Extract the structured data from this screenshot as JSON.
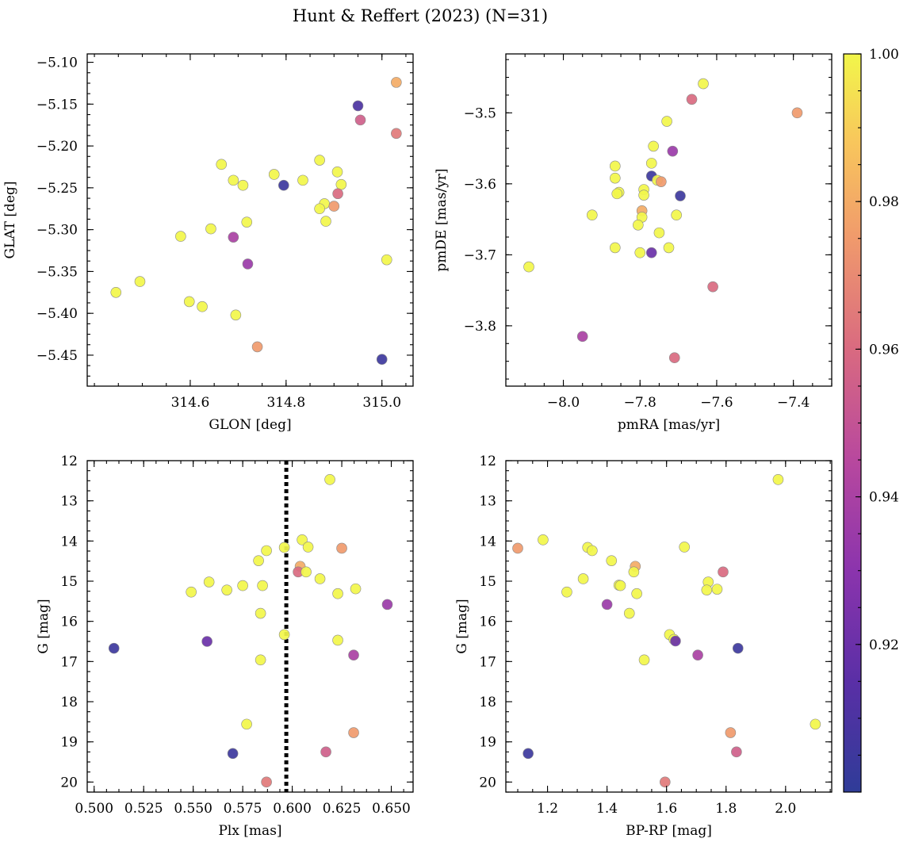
{
  "figure": {
    "title": "Hunt & Reffert (2023) (N=31)"
  },
  "colorbar": {
    "colormap": "plasma",
    "range": [
      0.9,
      1.0
    ],
    "ticks": [
      0.92,
      0.94,
      0.96,
      0.98,
      1.0
    ],
    "tick_labels": [
      "0.92",
      "0.94",
      "0.96",
      "0.98",
      "1.00"
    ]
  },
  "chart_data": [
    {
      "type": "scatter",
      "id": "sky",
      "xlabel": "GLON [deg]",
      "ylabel": "GLAT [deg]",
      "xlim": [
        314.385,
        315.065
      ],
      "ylim": [
        -5.487,
        -5.09
      ],
      "xticks": [
        314.6,
        314.8,
        315.0
      ],
      "xtick_labels": [
        "314.6",
        "314.8",
        "315.0"
      ],
      "yticks": [
        -5.1,
        -5.15,
        -5.2,
        -5.25,
        -5.3,
        -5.35,
        -5.4,
        -5.45
      ],
      "ytick_labels": [
        "−5.10",
        "−5.15",
        "−5.20",
        "−5.25",
        "−5.30",
        "−5.35",
        "−5.40",
        "−5.45"
      ],
      "points": [
        {
          "x": 315.03,
          "y": -5.124,
          "c": 0.98
        },
        {
          "x": 314.95,
          "y": -5.152,
          "c": 0.91
        },
        {
          "x": 314.955,
          "y": -5.169,
          "c": 0.955
        },
        {
          "x": 315.03,
          "y": -5.185,
          "c": 0.965
        },
        {
          "x": 314.87,
          "y": -5.217,
          "c": 1.0
        },
        {
          "x": 314.665,
          "y": -5.222,
          "c": 1.0
        },
        {
          "x": 314.907,
          "y": -5.231,
          "c": 1.0
        },
        {
          "x": 314.775,
          "y": -5.234,
          "c": 1.0
        },
        {
          "x": 314.69,
          "y": -5.241,
          "c": 1.0
        },
        {
          "x": 314.835,
          "y": -5.241,
          "c": 1.0
        },
        {
          "x": 314.915,
          "y": -5.246,
          "c": 1.0
        },
        {
          "x": 314.71,
          "y": -5.247,
          "c": 1.0
        },
        {
          "x": 314.795,
          "y": -5.247,
          "c": 0.905
        },
        {
          "x": 314.908,
          "y": -5.257,
          "c": 0.96
        },
        {
          "x": 314.88,
          "y": -5.269,
          "c": 1.0
        },
        {
          "x": 314.9,
          "y": -5.272,
          "c": 0.975
        },
        {
          "x": 314.87,
          "y": -5.275,
          "c": 1.0
        },
        {
          "x": 314.883,
          "y": -5.29,
          "c": 1.0
        },
        {
          "x": 314.718,
          "y": -5.291,
          "c": 1.0
        },
        {
          "x": 314.643,
          "y": -5.299,
          "c": 1.0
        },
        {
          "x": 314.58,
          "y": -5.308,
          "c": 1.0
        },
        {
          "x": 314.69,
          "y": -5.309,
          "c": 0.94
        },
        {
          "x": 315.01,
          "y": -5.336,
          "c": 1.0
        },
        {
          "x": 314.72,
          "y": -5.341,
          "c": 0.935
        },
        {
          "x": 314.495,
          "y": -5.362,
          "c": 1.0
        },
        {
          "x": 314.445,
          "y": -5.375,
          "c": 1.0
        },
        {
          "x": 314.598,
          "y": -5.386,
          "c": 1.0
        },
        {
          "x": 314.625,
          "y": -5.392,
          "c": 1.0
        },
        {
          "x": 314.695,
          "y": -5.402,
          "c": 1.0
        },
        {
          "x": 314.74,
          "y": -5.44,
          "c": 0.975
        },
        {
          "x": 315.0,
          "y": -5.455,
          "c": 0.905
        }
      ]
    },
    {
      "type": "scatter",
      "id": "proper-motion",
      "xlabel": "pmRA [mas/yr]",
      "ylabel": "pmDE [mas/yr]",
      "xlim": [
        -8.15,
        -7.3
      ],
      "ylim": [
        -3.885,
        -3.417
      ],
      "xticks": [
        -8.0,
        -7.8,
        -7.6,
        -7.4
      ],
      "xtick_labels": [
        "−8.0",
        "−7.8",
        "−7.6",
        "−7.4"
      ],
      "yticks": [
        -3.5,
        -3.6,
        -3.7,
        -3.8
      ],
      "ytick_labels": [
        "−3.5",
        "−3.6",
        "−3.7",
        "−3.8"
      ],
      "points": [
        {
          "x": -7.635,
          "y": -3.459,
          "c": 1.0
        },
        {
          "x": -7.665,
          "y": -3.481,
          "c": 0.96
        },
        {
          "x": -7.39,
          "y": -3.5,
          "c": 0.975
        },
        {
          "x": -7.73,
          "y": -3.512,
          "c": 1.0
        },
        {
          "x": -7.765,
          "y": -3.547,
          "c": 1.0
        },
        {
          "x": -7.715,
          "y": -3.554,
          "c": 0.935
        },
        {
          "x": -7.77,
          "y": -3.571,
          "c": 1.0
        },
        {
          "x": -7.865,
          "y": -3.575,
          "c": 1.0
        },
        {
          "x": -7.77,
          "y": -3.589,
          "c": 0.905
        },
        {
          "x": -7.865,
          "y": -3.592,
          "c": 1.0
        },
        {
          "x": -7.755,
          "y": -3.595,
          "c": 1.0
        },
        {
          "x": -7.745,
          "y": -3.597,
          "c": 0.975
        },
        {
          "x": -7.79,
          "y": -3.608,
          "c": 1.0
        },
        {
          "x": -7.855,
          "y": -3.612,
          "c": 1.0
        },
        {
          "x": -7.86,
          "y": -3.614,
          "c": 1.0
        },
        {
          "x": -7.79,
          "y": -3.616,
          "c": 1.0
        },
        {
          "x": -7.695,
          "y": -3.617,
          "c": 0.905
        },
        {
          "x": -7.795,
          "y": -3.638,
          "c": 0.98
        },
        {
          "x": -7.925,
          "y": -3.644,
          "c": 1.0
        },
        {
          "x": -7.705,
          "y": -3.644,
          "c": 1.0
        },
        {
          "x": -7.795,
          "y": -3.647,
          "c": 1.0
        },
        {
          "x": -7.805,
          "y": -3.658,
          "c": 1.0
        },
        {
          "x": -7.75,
          "y": -3.669,
          "c": 1.0
        },
        {
          "x": -7.865,
          "y": -3.69,
          "c": 1.0
        },
        {
          "x": -7.725,
          "y": -3.69,
          "c": 1.0
        },
        {
          "x": -7.8,
          "y": -3.697,
          "c": 1.0
        },
        {
          "x": -7.77,
          "y": -3.697,
          "c": 0.92
        },
        {
          "x": -8.09,
          "y": -3.717,
          "c": 1.0
        },
        {
          "x": -7.61,
          "y": -3.745,
          "c": 0.96
        },
        {
          "x": -7.95,
          "y": -3.815,
          "c": 0.94
        },
        {
          "x": -7.71,
          "y": -3.845,
          "c": 0.96
        }
      ]
    },
    {
      "type": "scatter",
      "id": "plx-g",
      "xlabel": "Plx [mas]",
      "ylabel": "G [mag]",
      "xlim": [
        0.4965,
        0.661
      ],
      "ylim": [
        20.25,
        12.0
      ],
      "y_inverted": true,
      "xticks": [
        0.5,
        0.525,
        0.55,
        0.575,
        0.6,
        0.625,
        0.65
      ],
      "xtick_labels": [
        "0.500",
        "0.525",
        "0.550",
        "0.575",
        "0.600",
        "0.625",
        "0.650"
      ],
      "yticks": [
        12,
        13,
        14,
        15,
        16,
        17,
        18,
        19,
        20
      ],
      "ytick_labels": [
        "12",
        "13",
        "14",
        "15",
        "16",
        "17",
        "18",
        "19",
        "20"
      ],
      "reference_line": {
        "x": 0.597,
        "style": "dotted"
      },
      "points": [
        {
          "x": 0.619,
          "y": 12.47,
          "c": 1.0
        },
        {
          "x": 0.605,
          "y": 13.97,
          "c": 1.0
        },
        {
          "x": 0.596,
          "y": 14.16,
          "c": 1.0
        },
        {
          "x": 0.608,
          "y": 14.15,
          "c": 1.0
        },
        {
          "x": 0.625,
          "y": 14.18,
          "c": 0.975
        },
        {
          "x": 0.587,
          "y": 14.24,
          "c": 1.0
        },
        {
          "x": 0.583,
          "y": 14.49,
          "c": 1.0
        },
        {
          "x": 0.604,
          "y": 14.63,
          "c": 0.98
        },
        {
          "x": 0.603,
          "y": 14.77,
          "c": 0.96
        },
        {
          "x": 0.607,
          "y": 14.77,
          "c": 1.0
        },
        {
          "x": 0.614,
          "y": 14.94,
          "c": 1.0
        },
        {
          "x": 0.558,
          "y": 15.02,
          "c": 1.0
        },
        {
          "x": 0.575,
          "y": 15.11,
          "c": 1.0
        },
        {
          "x": 0.585,
          "y": 15.11,
          "c": 1.0
        },
        {
          "x": 0.632,
          "y": 15.19,
          "c": 1.0
        },
        {
          "x": 0.567,
          "y": 15.22,
          "c": 1.0
        },
        {
          "x": 0.549,
          "y": 15.27,
          "c": 1.0
        },
        {
          "x": 0.623,
          "y": 15.31,
          "c": 1.0
        },
        {
          "x": 0.648,
          "y": 15.58,
          "c": 0.935
        },
        {
          "x": 0.584,
          "y": 15.8,
          "c": 1.0
        },
        {
          "x": 0.596,
          "y": 16.33,
          "c": 1.0
        },
        {
          "x": 0.623,
          "y": 16.47,
          "c": 1.0
        },
        {
          "x": 0.557,
          "y": 16.5,
          "c": 0.92
        },
        {
          "x": 0.51,
          "y": 16.67,
          "c": 0.905
        },
        {
          "x": 0.631,
          "y": 16.84,
          "c": 0.94
        },
        {
          "x": 0.584,
          "y": 16.96,
          "c": 1.0
        },
        {
          "x": 0.577,
          "y": 18.56,
          "c": 1.0
        },
        {
          "x": 0.631,
          "y": 18.77,
          "c": 0.975
        },
        {
          "x": 0.617,
          "y": 19.25,
          "c": 0.955
        },
        {
          "x": 0.57,
          "y": 19.29,
          "c": 0.905
        },
        {
          "x": 0.587,
          "y": 20.0,
          "c": 0.965
        }
      ]
    },
    {
      "type": "scatter",
      "id": "cmd",
      "xlabel": "BP-RP [mag]",
      "ylabel": "G [mag]",
      "xlim": [
        1.06,
        2.155
      ],
      "ylim": [
        20.25,
        12.0
      ],
      "y_inverted": true,
      "xticks": [
        1.2,
        1.4,
        1.6,
        1.8,
        2.0
      ],
      "xtick_labels": [
        "1.2",
        "1.4",
        "1.6",
        "1.8",
        "2.0"
      ],
      "yticks": [
        12,
        13,
        14,
        15,
        16,
        17,
        18,
        19,
        20
      ],
      "ytick_labels": [
        "12",
        "13",
        "14",
        "15",
        "16",
        "17",
        "18",
        "19",
        "20"
      ],
      "points": [
        {
          "x": 1.975,
          "y": 12.47,
          "c": 1.0
        },
        {
          "x": 1.185,
          "y": 13.97,
          "c": 1.0
        },
        {
          "x": 1.1,
          "y": 14.18,
          "c": 0.975
        },
        {
          "x": 1.335,
          "y": 14.16,
          "c": 1.0
        },
        {
          "x": 1.66,
          "y": 14.15,
          "c": 1.0
        },
        {
          "x": 1.35,
          "y": 14.24,
          "c": 1.0
        },
        {
          "x": 1.415,
          "y": 14.49,
          "c": 1.0
        },
        {
          "x": 1.495,
          "y": 14.63,
          "c": 0.98
        },
        {
          "x": 1.49,
          "y": 14.77,
          "c": 1.0
        },
        {
          "x": 1.79,
          "y": 14.77,
          "c": 0.96
        },
        {
          "x": 1.32,
          "y": 14.94,
          "c": 1.0
        },
        {
          "x": 1.74,
          "y": 15.02,
          "c": 1.0
        },
        {
          "x": 1.44,
          "y": 15.1,
          "c": 1.0
        },
        {
          "x": 1.445,
          "y": 15.11,
          "c": 1.0
        },
        {
          "x": 1.735,
          "y": 15.22,
          "c": 1.0
        },
        {
          "x": 1.77,
          "y": 15.2,
          "c": 1.0
        },
        {
          "x": 1.265,
          "y": 15.27,
          "c": 1.0
        },
        {
          "x": 1.5,
          "y": 15.31,
          "c": 1.0
        },
        {
          "x": 1.4,
          "y": 15.58,
          "c": 0.935
        },
        {
          "x": 1.475,
          "y": 15.8,
          "c": 1.0
        },
        {
          "x": 1.61,
          "y": 16.33,
          "c": 1.0
        },
        {
          "x": 1.625,
          "y": 16.45,
          "c": 1.0
        },
        {
          "x": 1.63,
          "y": 16.49,
          "c": 0.92
        },
        {
          "x": 1.84,
          "y": 16.67,
          "c": 0.905
        },
        {
          "x": 1.705,
          "y": 16.84,
          "c": 0.94
        },
        {
          "x": 1.525,
          "y": 16.96,
          "c": 1.0
        },
        {
          "x": 2.1,
          "y": 18.56,
          "c": 1.0
        },
        {
          "x": 1.815,
          "y": 18.77,
          "c": 0.975
        },
        {
          "x": 1.835,
          "y": 19.25,
          "c": 0.955
        },
        {
          "x": 1.135,
          "y": 19.29,
          "c": 0.905
        },
        {
          "x": 1.595,
          "y": 20.0,
          "c": 0.965
        }
      ]
    }
  ]
}
